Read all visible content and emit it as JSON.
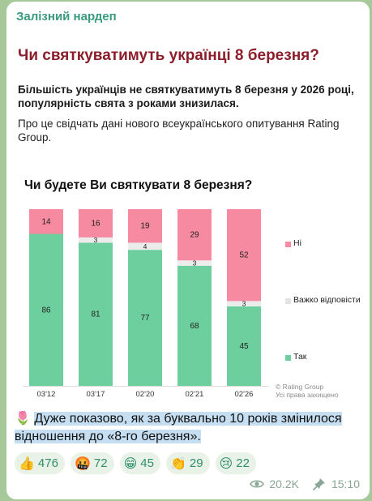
{
  "channel": {
    "name": "Залізний нардеп"
  },
  "card": {
    "title": "Чи святкуватимуть українці 8 березня?",
    "lead": "Більшість українців не святкуватимуть 8 березня у 2026 році, популярність свята з роками знизилася.",
    "source_text": "Про це свідчать дані нового всеукраїнського опитування Rating Group.",
    "copyright_line1": "© Rating Group",
    "copyright_line2": "Усі права захищено"
  },
  "chart_data": {
    "type": "bar",
    "stacked": true,
    "title": "Чи будете Ви святкувати 8 березня?",
    "categories": [
      "03'12",
      "03'17",
      "02'20",
      "02'21",
      "02'26"
    ],
    "series": [
      {
        "name": "Так",
        "color": "#6dcf9e",
        "values": [
          86,
          81,
          77,
          68,
          45
        ]
      },
      {
        "name": "Важко відповісти",
        "color": "#ececec",
        "values": [
          0,
          3,
          4,
          3,
          3
        ]
      },
      {
        "name": "Ні",
        "color": "#f58aa0",
        "values": [
          14,
          16,
          19,
          29,
          52
        ]
      }
    ],
    "ylim": [
      0,
      100
    ],
    "legend_position": "right",
    "legend": [
      "Ні",
      "Важко відповісти",
      "Так"
    ]
  },
  "caption": {
    "emoji": "🌷",
    "text": "Дуже показово, як за буквально 10 років змінилося відношення до «8-го березня»."
  },
  "reactions": [
    {
      "icon": "thumbs-up-icon",
      "emoji": "👍",
      "count": "476"
    },
    {
      "icon": "angry-face-icon",
      "emoji": "🤬",
      "count": "72"
    },
    {
      "icon": "grinning-face-icon",
      "emoji": "😁",
      "count": "45"
    },
    {
      "icon": "clapping-hands-icon",
      "emoji": "👏",
      "count": "29"
    },
    {
      "icon": "crying-face-icon",
      "emoji": "😢",
      "count": "22"
    }
  ],
  "meta": {
    "views": "20.2K",
    "time": "15:10"
  }
}
